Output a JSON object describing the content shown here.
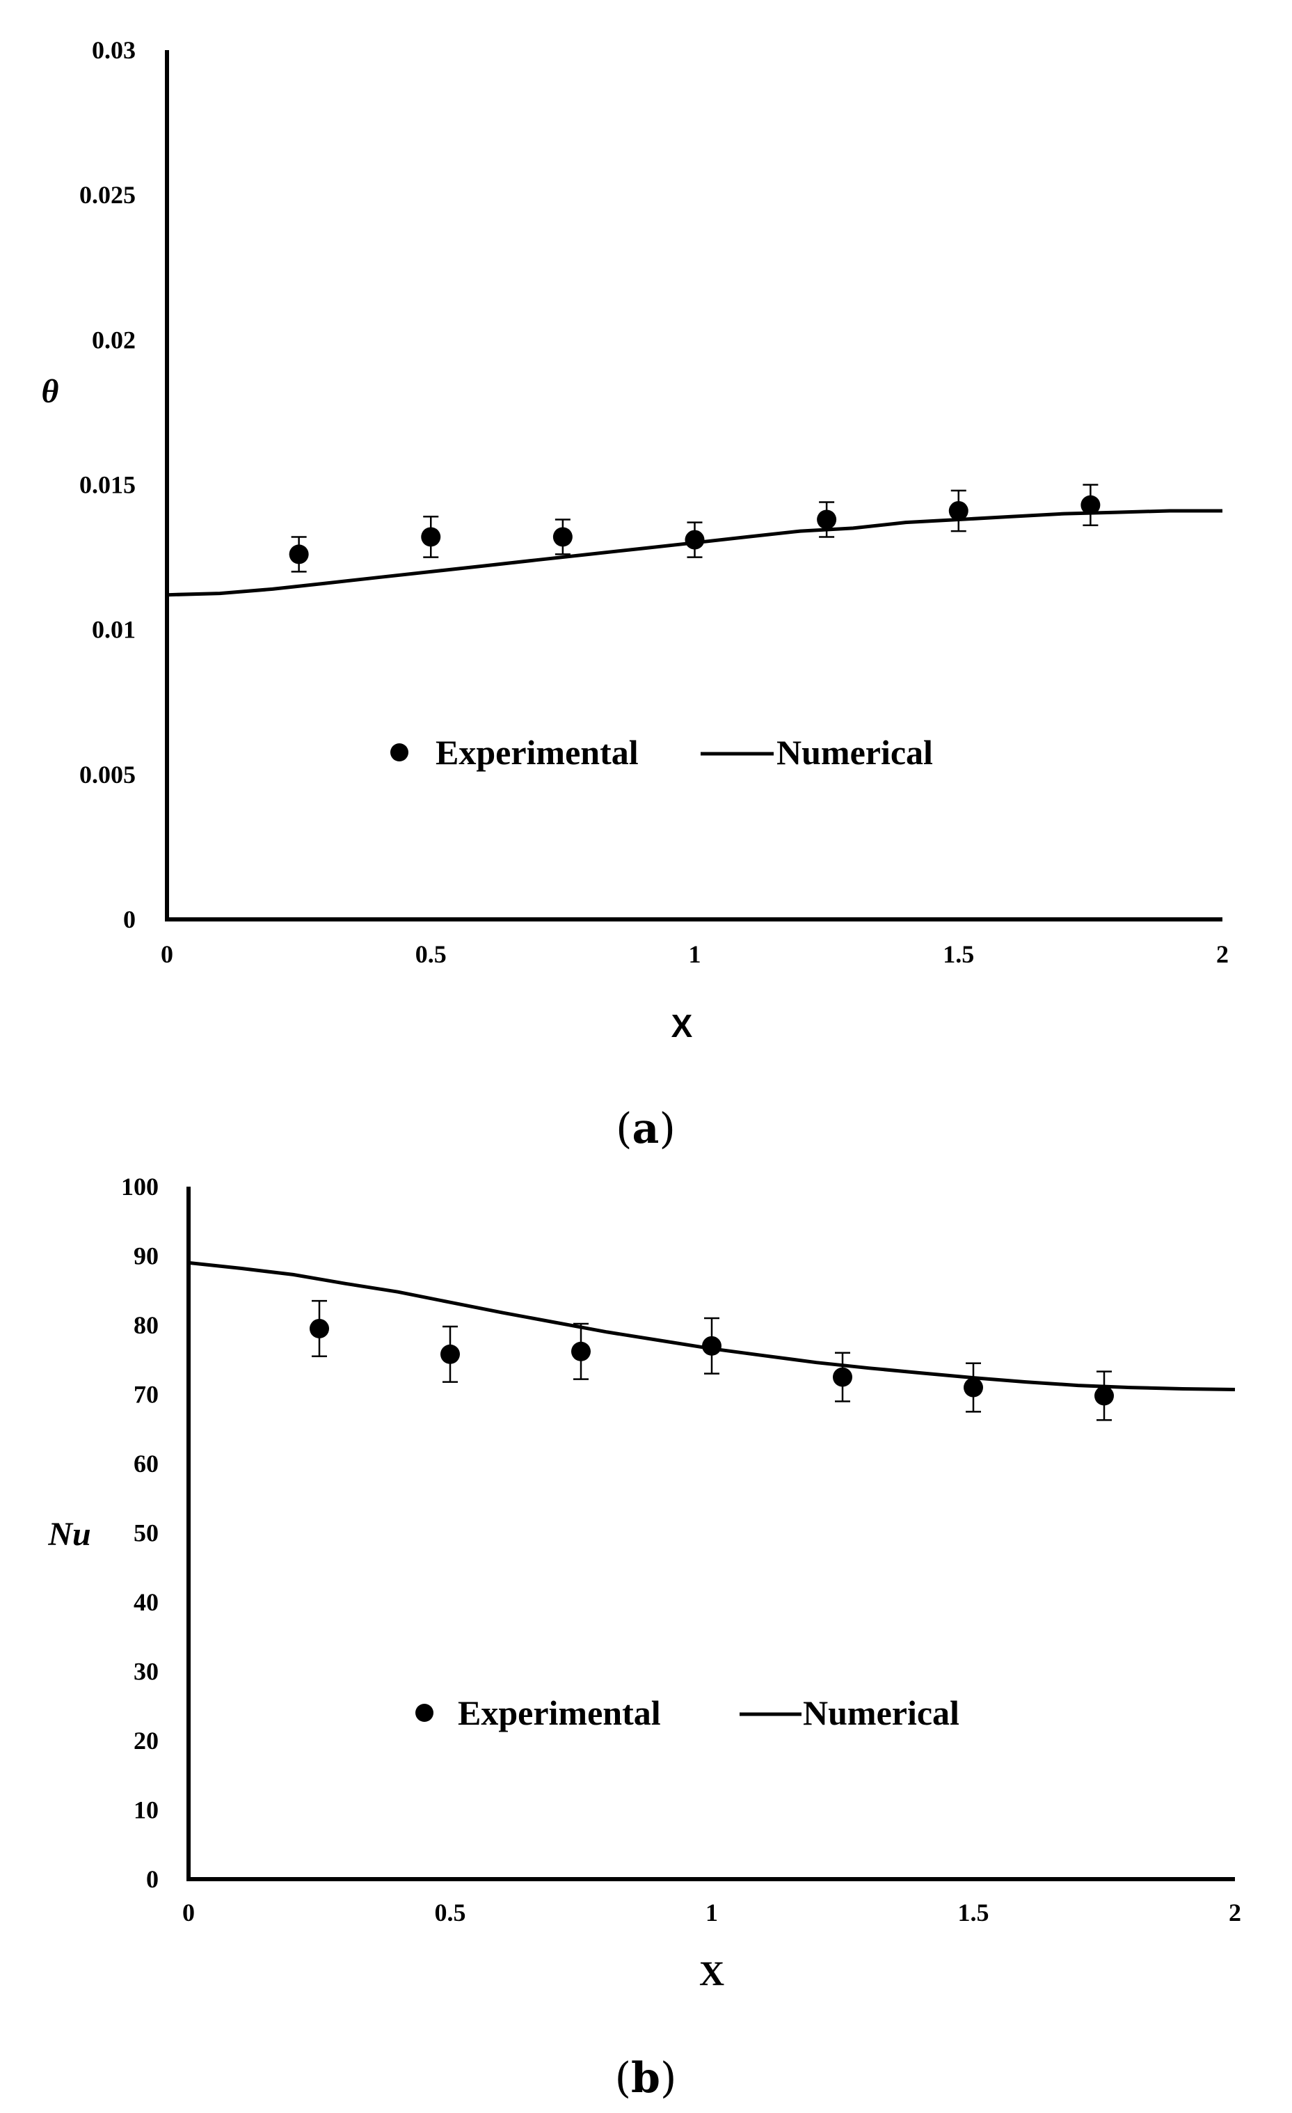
{
  "chart_data": [
    {
      "type": "scatter",
      "title": "",
      "caption_open": "(",
      "caption_letter": "a",
      "caption_close": ")",
      "xlabel": "X",
      "ylabel": "θ",
      "xlim": [
        0,
        2
      ],
      "ylim": [
        0,
        0.03
      ],
      "xticks": [
        "0",
        "0.5",
        "1",
        "1.5",
        "2"
      ],
      "xtick_values": [
        0,
        0.5,
        1,
        1.5,
        2
      ],
      "yticks": [
        "0",
        "0.005",
        "0.01",
        "0.015",
        "0.02",
        "0.025",
        "0.03"
      ],
      "ytick_values": [
        0,
        0.005,
        0.01,
        0.015,
        0.02,
        0.025,
        0.03
      ],
      "legend": {
        "experimental": "Experimental",
        "numerical": "Numerical",
        "position": "center"
      },
      "series": [
        {
          "name": "Experimental",
          "kind": "points",
          "x": [
            0.25,
            0.5,
            0.75,
            1.0,
            1.25,
            1.5,
            1.75
          ],
          "y": [
            0.0126,
            0.0132,
            0.0132,
            0.0131,
            0.0138,
            0.0141,
            0.0143
          ],
          "err": [
            0.0006,
            0.0007,
            0.0006,
            0.0006,
            0.0006,
            0.0007,
            0.0007
          ]
        },
        {
          "name": "Numerical",
          "kind": "line",
          "x": [
            0,
            0.1,
            0.2,
            0.3,
            0.4,
            0.5,
            0.6,
            0.7,
            0.8,
            0.9,
            1.0,
            1.1,
            1.2,
            1.3,
            1.4,
            1.5,
            1.6,
            1.7,
            1.8,
            1.9,
            2.0
          ],
          "y": [
            0.0112,
            0.01125,
            0.0114,
            0.0116,
            0.0118,
            0.012,
            0.0122,
            0.0124,
            0.0126,
            0.0128,
            0.013,
            0.0132,
            0.0134,
            0.0135,
            0.0137,
            0.0138,
            0.0139,
            0.014,
            0.01405,
            0.0141,
            0.0141
          ]
        }
      ]
    },
    {
      "type": "scatter",
      "title": "",
      "caption_open": "(",
      "caption_letter": "b",
      "caption_close": ")",
      "xlabel": "X",
      "ylabel": "Nu",
      "xlim": [
        0,
        2
      ],
      "ylim": [
        0,
        100
      ],
      "xticks": [
        "0",
        "0.5",
        "1",
        "1.5",
        "2"
      ],
      "xtick_values": [
        0,
        0.5,
        1,
        1.5,
        2
      ],
      "yticks": [
        "0",
        "10",
        "20",
        "30",
        "40",
        "50",
        "60",
        "70",
        "80",
        "90",
        "100"
      ],
      "ytick_values": [
        0,
        10,
        20,
        30,
        40,
        50,
        60,
        70,
        80,
        90,
        100
      ],
      "legend": {
        "experimental": "Experimental",
        "numerical": "Numerical",
        "position": "center"
      },
      "series": [
        {
          "name": "Experimental",
          "kind": "points",
          "x": [
            0.25,
            0.5,
            0.75,
            1.0,
            1.25,
            1.5,
            1.75
          ],
          "y": [
            79.5,
            75.8,
            76.2,
            77.0,
            72.5,
            71.0,
            69.8
          ],
          "err": [
            4.0,
            4.0,
            4.0,
            4.0,
            3.5,
            3.5,
            3.5
          ]
        },
        {
          "name": "Numerical",
          "kind": "line",
          "x": [
            0,
            0.1,
            0.2,
            0.3,
            0.4,
            0.5,
            0.6,
            0.7,
            0.8,
            0.9,
            1.0,
            1.1,
            1.2,
            1.3,
            1.4,
            1.5,
            1.6,
            1.7,
            1.8,
            1.9,
            2.0
          ],
          "y": [
            89,
            88.2,
            87.3,
            86,
            84.8,
            83.3,
            81.8,
            80.4,
            79,
            77.8,
            76.6,
            75.6,
            74.6,
            73.8,
            73.1,
            72.4,
            71.8,
            71.3,
            71,
            70.8,
            70.7
          ]
        }
      ]
    }
  ]
}
